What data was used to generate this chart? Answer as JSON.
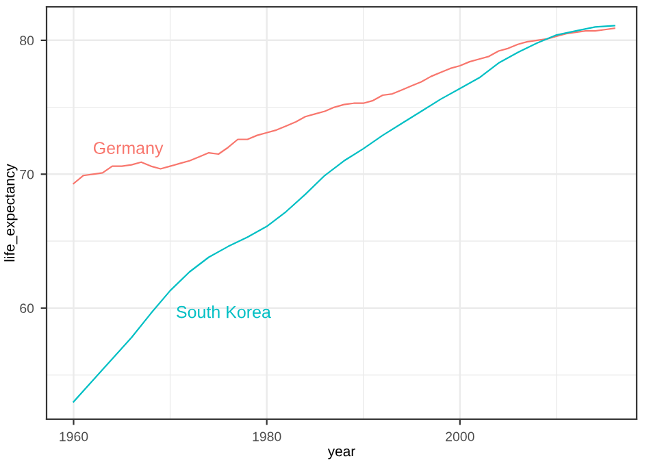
{
  "chart_data": {
    "type": "line",
    "xlabel": "year",
    "ylabel": "life_expectancy",
    "xlim": [
      1957.2,
      2018.3
    ],
    "ylim": [
      51.7,
      82.5
    ],
    "xticks": [
      1960,
      1980,
      2000
    ],
    "yticks": [
      60,
      70,
      80
    ],
    "grid": true,
    "series": [
      {
        "name": "Germany",
        "color": "#f8766d",
        "x": [
          1960,
          1961,
          1962,
          1963,
          1964,
          1965,
          1966,
          1967,
          1968,
          1969,
          1970,
          1971,
          1972,
          1973,
          1974,
          1975,
          1976,
          1977,
          1978,
          1979,
          1980,
          1981,
          1982,
          1983,
          1984,
          1985,
          1986,
          1987,
          1988,
          1989,
          1990,
          1991,
          1992,
          1993,
          1994,
          1995,
          1996,
          1997,
          1998,
          1999,
          2000,
          2001,
          2002,
          2003,
          2004,
          2005,
          2006,
          2007,
          2008,
          2009,
          2010,
          2011,
          2012,
          2013,
          2014,
          2015,
          2016
        ],
        "values": [
          69.3,
          69.9,
          70.0,
          70.1,
          70.6,
          70.6,
          70.7,
          70.9,
          70.6,
          70.4,
          70.6,
          70.8,
          71.0,
          71.3,
          71.6,
          71.5,
          72.0,
          72.6,
          72.6,
          72.9,
          73.1,
          73.3,
          73.6,
          73.9,
          74.3,
          74.5,
          74.7,
          75.0,
          75.2,
          75.3,
          75.3,
          75.5,
          75.9,
          76.0,
          76.3,
          76.6,
          76.9,
          77.3,
          77.6,
          77.9,
          78.1,
          78.4,
          78.6,
          78.8,
          79.2,
          79.4,
          79.7,
          79.9,
          80.0,
          80.1,
          80.3,
          80.5,
          80.6,
          80.7,
          80.7,
          80.8,
          80.9
        ]
      },
      {
        "name": "South Korea",
        "color": "#00bfc4",
        "x": [
          1960,
          1962,
          1964,
          1966,
          1968,
          1970,
          1972,
          1974,
          1976,
          1978,
          1980,
          1982,
          1984,
          1986,
          1988,
          1990,
          1992,
          1994,
          1996,
          1998,
          2000,
          2002,
          2004,
          2006,
          2008,
          2010,
          2012,
          2014,
          2016
        ],
        "values": [
          53.0,
          54.6,
          56.2,
          57.8,
          59.6,
          61.3,
          62.7,
          63.8,
          64.6,
          65.3,
          66.1,
          67.2,
          68.5,
          69.9,
          71.0,
          71.9,
          72.9,
          73.8,
          74.7,
          75.6,
          76.4,
          77.2,
          78.3,
          79.1,
          79.8,
          80.4,
          80.7,
          81.0,
          81.1
        ]
      }
    ]
  }
}
